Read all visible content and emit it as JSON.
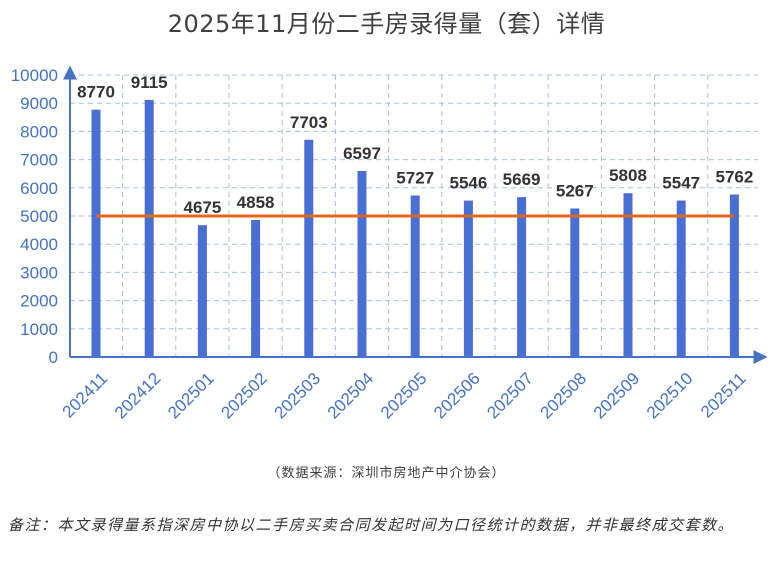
{
  "chart_data": {
    "type": "bar",
    "title": "2025年11月份二手房录得量（套）详情",
    "categories": [
      "202411",
      "202412",
      "202501",
      "202502",
      "202503",
      "202504",
      "202505",
      "202506",
      "202507",
      "202508",
      "202509",
      "202510",
      "202511"
    ],
    "values": [
      8770,
      9115,
      4675,
      4858,
      7703,
      6597,
      5727,
      5546,
      5669,
      5267,
      5808,
      5547,
      5762
    ],
    "reference_line": 5000,
    "ylim": [
      0,
      10000
    ],
    "yticks": [
      "0",
      "1000",
      "2000",
      "3000",
      "4000",
      "5000",
      "6000",
      "7000",
      "8000",
      "9000",
      "10000"
    ],
    "xlabel": "",
    "ylabel": "",
    "grid": true,
    "bar_color": "#4A6FD4",
    "line_color": "#E3661C",
    "axis_color": "#4472C4",
    "grid_color": "#A9BDEB"
  },
  "source": "（数据来源：深圳市房地产中介协会）",
  "note": "备注：本文录得量系指深房中协以二手房买卖合同发起时间为口径统计的数据，并非最终成交套数。"
}
